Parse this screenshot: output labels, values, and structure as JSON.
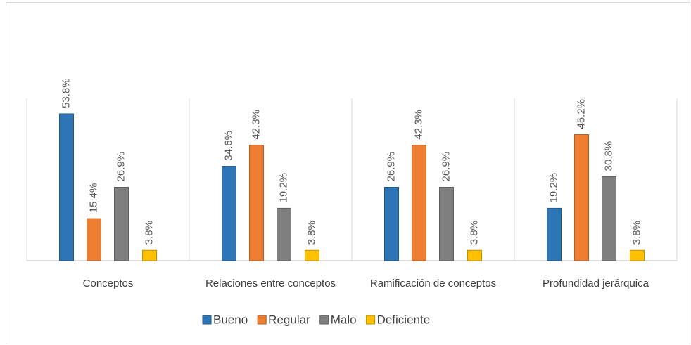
{
  "chart_data": {
    "type": "bar",
    "categories": [
      "Conceptos",
      "Relaciones entre conceptos",
      "Ramificación de conceptos",
      "Profundidad jerárquica"
    ],
    "series": [
      {
        "name": "Bueno",
        "color": "#2e75b6",
        "values": [
          53.8,
          34.6,
          26.9,
          19.2
        ],
        "value_labels": [
          "53.8%",
          "34.6%",
          "26.9%",
          "19.2%"
        ]
      },
      {
        "name": "Regular",
        "color": "#ed7d31",
        "values": [
          15.4,
          42.3,
          42.3,
          46.2
        ],
        "value_labels": [
          "15.4%",
          "42.3%",
          "42.3%",
          "46.2%"
        ]
      },
      {
        "name": "Malo",
        "color": "#7f7f7f",
        "values": [
          26.9,
          19.2,
          26.9,
          30.8
        ],
        "value_labels": [
          "26.9%",
          "19.2%",
          "26.9%",
          "30.8%"
        ]
      },
      {
        "name": "Deficiente",
        "color": "#ffc000",
        "values": [
          3.8,
          3.8,
          3.8,
          3.8
        ],
        "value_labels": [
          "3.8%",
          "3.8%",
          "3.8%",
          "3.8%"
        ]
      }
    ],
    "ylim": [
      0,
      60
    ],
    "legend": "bottom"
  }
}
